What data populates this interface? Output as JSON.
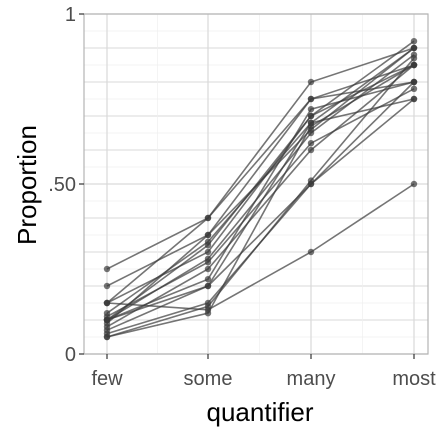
{
  "chart_data": {
    "type": "line",
    "title": "",
    "xlabel": "quantifier",
    "ylabel": "Proportion",
    "categories": [
      "few",
      "some",
      "many",
      "most"
    ],
    "ylim": [
      0,
      1
    ],
    "yticks": [
      {
        "value": 0,
        "label": "0"
      },
      {
        "value": 0.5,
        "label": ".50"
      },
      {
        "value": 1,
        "label": "1"
      }
    ],
    "grid": true,
    "legend": "none",
    "colors": {
      "line": "#3a3a3a",
      "panel_border": "#b3b3b3",
      "grid_major": "#d9d9d9",
      "grid_minor": "#efefef",
      "tick_text": "#4d4d4d"
    },
    "series": [
      {
        "values": [
          0.25,
          0.4,
          0.8,
          0.9
        ]
      },
      {
        "values": [
          0.2,
          0.35,
          0.75,
          0.85
        ]
      },
      {
        "values": [
          0.15,
          0.3,
          0.7,
          0.92
        ]
      },
      {
        "values": [
          0.15,
          0.4,
          0.75,
          0.8
        ]
      },
      {
        "values": [
          0.12,
          0.33,
          0.68,
          0.9
        ]
      },
      {
        "values": [
          0.1,
          0.32,
          0.7,
          0.85
        ]
      },
      {
        "values": [
          0.1,
          0.28,
          0.65,
          0.88
        ]
      },
      {
        "values": [
          0.08,
          0.25,
          0.6,
          0.85
        ]
      },
      {
        "values": [
          0.1,
          0.22,
          0.72,
          0.8
        ]
      },
      {
        "values": [
          0.07,
          0.2,
          0.68,
          0.75
        ]
      },
      {
        "values": [
          0.06,
          0.15,
          0.5,
          0.8
        ]
      },
      {
        "values": [
          0.05,
          0.14,
          0.51,
          0.87
        ]
      },
      {
        "values": [
          0.05,
          0.12,
          0.67,
          0.85
        ]
      },
      {
        "values": [
          0.09,
          0.35,
          0.66,
          0.9
        ]
      },
      {
        "values": [
          0.11,
          0.27,
          0.62,
          0.78
        ]
      },
      {
        "values": [
          0.1,
          0.2,
          0.5,
          0.75
        ]
      },
      {
        "values": [
          0.15,
          0.13,
          0.3,
          0.5
        ]
      }
    ]
  }
}
